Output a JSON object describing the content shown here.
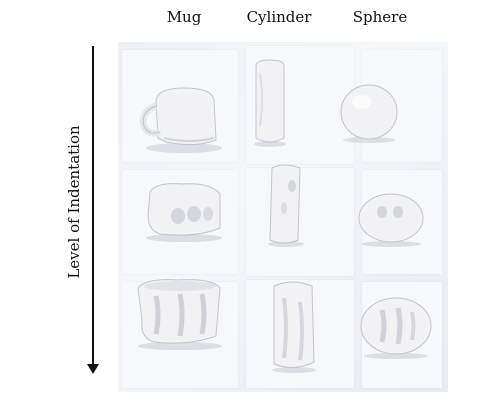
{
  "columns": [
    "Mug",
    "Cylinder",
    "Sphere"
  ],
  "row_axis_label": "Level of Indentation",
  "objects": [
    {
      "shape": "mug",
      "indentation": "none"
    },
    {
      "shape": "cylinder",
      "indentation": "none"
    },
    {
      "shape": "sphere",
      "indentation": "none"
    },
    {
      "shape": "mug",
      "indentation": "medium"
    },
    {
      "shape": "cylinder",
      "indentation": "medium"
    },
    {
      "shape": "sphere",
      "indentation": "medium"
    },
    {
      "shape": "mug",
      "indentation": "high"
    },
    {
      "shape": "cylinder",
      "indentation": "high"
    },
    {
      "shape": "sphere",
      "indentation": "high"
    }
  ],
  "colors": {
    "clay": "#f2f2f4",
    "shadow": "#b9bcc6",
    "background": "#eef0f6"
  }
}
